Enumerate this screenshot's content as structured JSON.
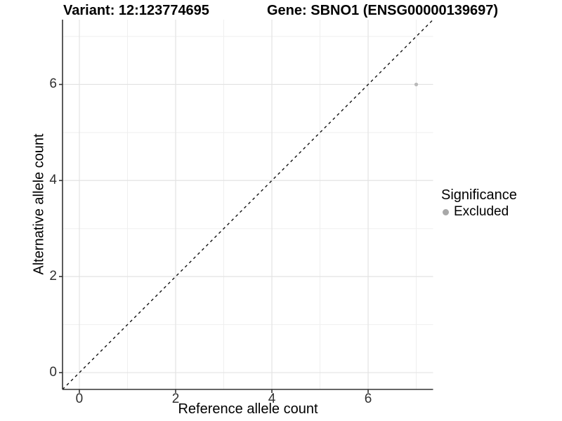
{
  "header": {
    "title_left": "Variant: 12:123774695",
    "title_right": "Gene: SBNO1 (ENSG00000139697)"
  },
  "chart_data": {
    "type": "scatter",
    "xlabel": "Reference allele count",
    "ylabel": "Alternative allele count",
    "xlim": [
      -0.35,
      7.35
    ],
    "ylim": [
      -0.35,
      7.35
    ],
    "x_major_ticks": [
      0,
      2,
      4,
      6
    ],
    "y_major_ticks": [
      0,
      2,
      4,
      6
    ],
    "x_minor_ticks": [
      1,
      3,
      5,
      7
    ],
    "y_minor_ticks": [
      1,
      3,
      5,
      7
    ],
    "grid": true,
    "reference_line": {
      "style": "dashed",
      "slope": 1,
      "intercept": 0,
      "color": "#111111"
    },
    "series": [
      {
        "name": "Excluded",
        "color": "#b9b9b9",
        "points": [
          {
            "x": 7,
            "y": 6
          }
        ]
      }
    ],
    "legend": {
      "title": "Significance",
      "position": "right",
      "items": [
        {
          "label": "Excluded",
          "color": "#a8a8a8"
        }
      ]
    },
    "style": {
      "background": "#ffffff",
      "grid_major_color": "#e3e3e3",
      "grid_minor_color": "#efefef",
      "axis_line_color": "#333333",
      "tick_text_color": "#303030"
    }
  }
}
